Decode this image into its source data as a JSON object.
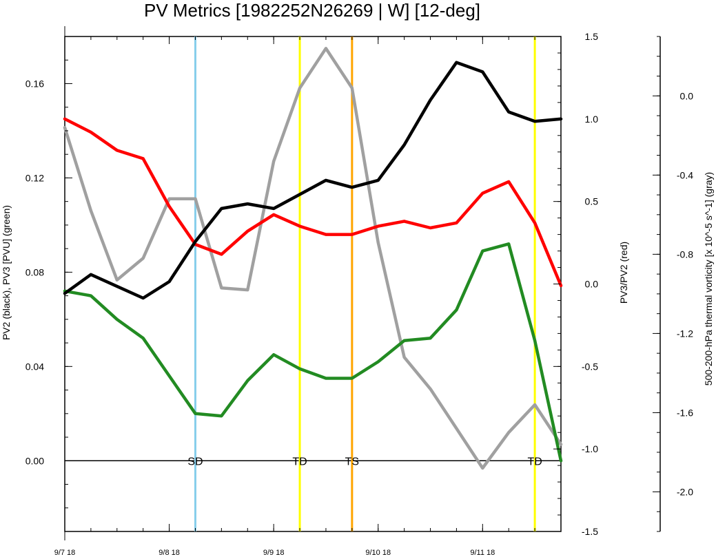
{
  "chart_data": {
    "type": "line",
    "title": "PV Metrics [1982252N26269 | W] [12-deg]",
    "x": [
      "9/7 00",
      "9/7 06",
      "9/7 12",
      "9/7 18",
      "9/8 00",
      "9/8 06",
      "9/8 12",
      "9/8 18",
      "9/9 00",
      "9/9 06",
      "9/9 12",
      "9/9 18",
      "9/10 00",
      "9/10 06",
      "9/10 12",
      "9/10 18",
      "9/11 00",
      "9/11 06",
      "9/11 12",
      "9/11 18"
    ],
    "x_tick_labels": [
      "9/7 18",
      "9/8 18",
      "9/9 18",
      "9/10 18",
      "9/11 18"
    ],
    "axes": {
      "left": {
        "label": "PV2 (black), PV3 [PVU] (green)",
        "range": [
          -0.03,
          0.18
        ],
        "ticks": [
          0.0,
          0.04,
          0.08,
          0.12,
          0.16
        ],
        "tick_labels": [
          "0.00",
          "0.04",
          "0.08",
          "0.12",
          "0.16"
        ]
      },
      "right": {
        "label": "PV3/PV2 (red)",
        "range": [
          -1.5,
          1.5
        ],
        "ticks": [
          -1.5,
          -1.0,
          -0.5,
          0.0,
          0.5,
          1.0,
          1.5
        ],
        "tick_labels": [
          "-1.5",
          "-1.0",
          "-0.5",
          "0.0",
          "0.5",
          "1.0",
          "1.5"
        ]
      },
      "far_right": {
        "label": "500-200-hPa thermal vorticity [x 10^-5 s^-1] (gray)",
        "range": [
          -2.2,
          0.3
        ],
        "ticks": [
          -2.0,
          -1.6,
          -1.2,
          -0.8,
          -0.4,
          0.0
        ],
        "tick_labels": [
          "-2.0",
          "-1.6",
          "-1.2",
          "-0.8",
          "-0.4",
          "0.0"
        ]
      }
    },
    "series": [
      {
        "name": "PV2",
        "axis": "left",
        "color": "#000000",
        "values": [
          0.071,
          0.079,
          0.074,
          0.069,
          0.076,
          0.093,
          0.107,
          0.109,
          0.107,
          0.113,
          0.119,
          0.116,
          0.119,
          0.134,
          0.153,
          0.169,
          0.165,
          0.148,
          0.144,
          0.145
        ]
      },
      {
        "name": "PV3",
        "axis": "left",
        "color": "#228b22",
        "values": [
          0.072,
          0.07,
          0.06,
          0.052,
          0.036,
          0.02,
          0.019,
          0.034,
          0.045,
          0.039,
          0.035,
          0.035,
          0.042,
          0.051,
          0.052,
          0.064,
          0.089,
          0.092,
          0.051,
          0.0
        ]
      },
      {
        "name": "PV3/PV2",
        "axis": "right",
        "color": "#ff0000",
        "values": [
          1.0,
          0.92,
          0.81,
          0.76,
          0.47,
          0.24,
          0.18,
          0.32,
          0.42,
          0.35,
          0.3,
          0.3,
          0.35,
          0.38,
          0.34,
          0.37,
          0.55,
          0.62,
          0.37,
          -0.01
        ]
      },
      {
        "name": "500-200-hPa thermal vorticity",
        "axis": "far_right",
        "color": "#a0a0a0",
        "values": [
          -0.16,
          -0.58,
          -0.93,
          -0.82,
          -0.52,
          -0.52,
          -0.97,
          -0.98,
          -0.33,
          0.04,
          0.24,
          0.04,
          -0.74,
          -1.32,
          -1.48,
          -1.68,
          -1.88,
          -1.7,
          -1.56,
          -1.76
        ]
      }
    ],
    "events": [
      {
        "label": "SD",
        "x": "9/8 06",
        "color": "#87ceeb"
      },
      {
        "label": "TD",
        "x": "9/9 06",
        "color": "#ffff00"
      },
      {
        "label": "TS",
        "x": "9/9 18",
        "color": "#ffa500"
      },
      {
        "label": "TD",
        "x": "9/11 12",
        "color": "#ffff00"
      }
    ],
    "zero_line": true,
    "grid": false
  }
}
